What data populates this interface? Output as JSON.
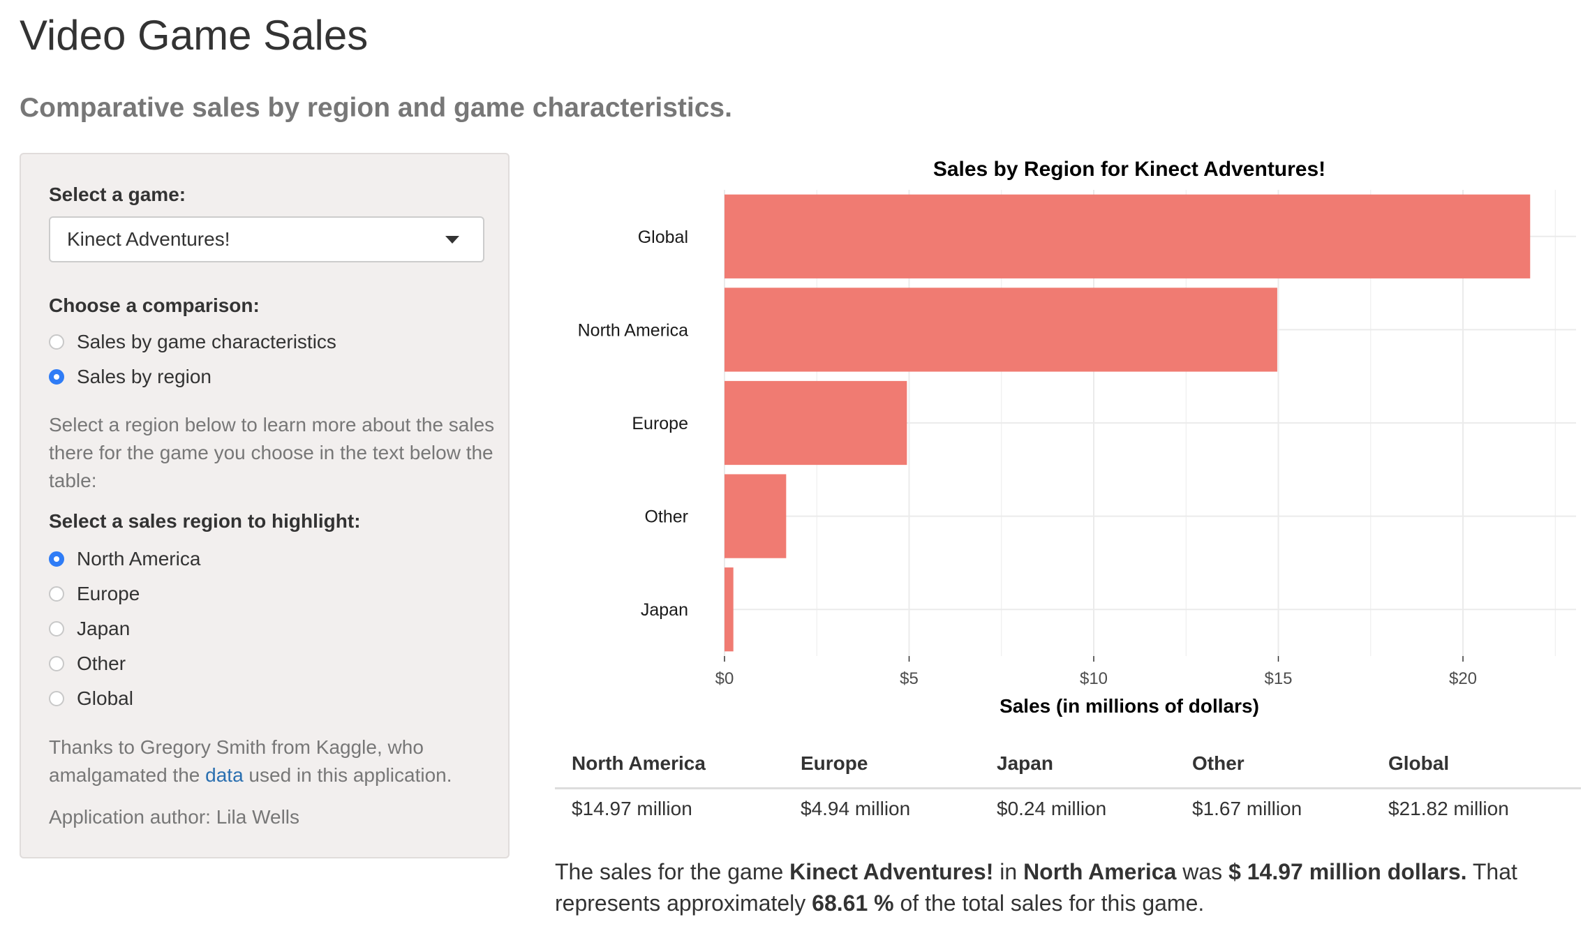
{
  "header": {
    "title": "Video Game Sales",
    "subtitle": "Comparative sales by region and game characteristics."
  },
  "sidebar": {
    "game_label": "Select a game:",
    "game_selected": "Kinect Adventures!",
    "comparison_label": "Choose a comparison:",
    "comparison_options": [
      {
        "label": "Sales by game characteristics",
        "checked": false
      },
      {
        "label": "Sales by region",
        "checked": true
      }
    ],
    "region_help": "Select a region below to learn more about the sales there for the game you choose in the text below the table:",
    "region_label": "Select a sales region to highlight:",
    "region_options": [
      {
        "label": "North America",
        "checked": true
      },
      {
        "label": "Europe",
        "checked": false
      },
      {
        "label": "Japan",
        "checked": false
      },
      {
        "label": "Other",
        "checked": false
      },
      {
        "label": "Global",
        "checked": false
      }
    ],
    "credits_before": "Thanks to Gregory Smith from Kaggle, who amalgamated the",
    "credits_link": "data",
    "credits_after": "used in this application.",
    "author": "Application author: Lila Wells"
  },
  "chart_data": {
    "type": "bar",
    "orientation": "horizontal",
    "title": "Sales by Region for Kinect Adventures!",
    "xlabel": "Sales (in millions of dollars)",
    "ylabel": "",
    "categories": [
      "Global",
      "North America",
      "Europe",
      "Other",
      "Japan"
    ],
    "values": [
      21.82,
      14.97,
      4.94,
      1.67,
      0.24
    ],
    "xlim": [
      0,
      22.9
    ],
    "xticks": [
      0,
      5,
      10,
      15,
      20
    ],
    "xtick_labels": [
      "$0",
      "$5",
      "$10",
      "$15",
      "$20"
    ],
    "bar_color": "#f07b72",
    "grid": true
  },
  "table": {
    "headers": [
      "North America",
      "Europe",
      "Japan",
      "Other",
      "Global"
    ],
    "rows": [
      [
        "$14.97 million",
        "$4.94 million",
        "$0.24 million",
        "$1.67 million",
        "$21.82 million"
      ]
    ]
  },
  "summary": {
    "p1": "The sales for the game ",
    "game": "Kinect Adventures!",
    "p2": " in ",
    "region": "North America",
    "p3": " was ",
    "amount": "$ 14.97 million dollars.",
    "p4": " That represents approximately ",
    "percent": "68.61 %",
    "p5": " of the total sales for this game."
  },
  "colors": {
    "radio_checked": "#2f7cf6",
    "link": "#2a6fb0",
    "sidebar_bg": "#f2efee"
  }
}
